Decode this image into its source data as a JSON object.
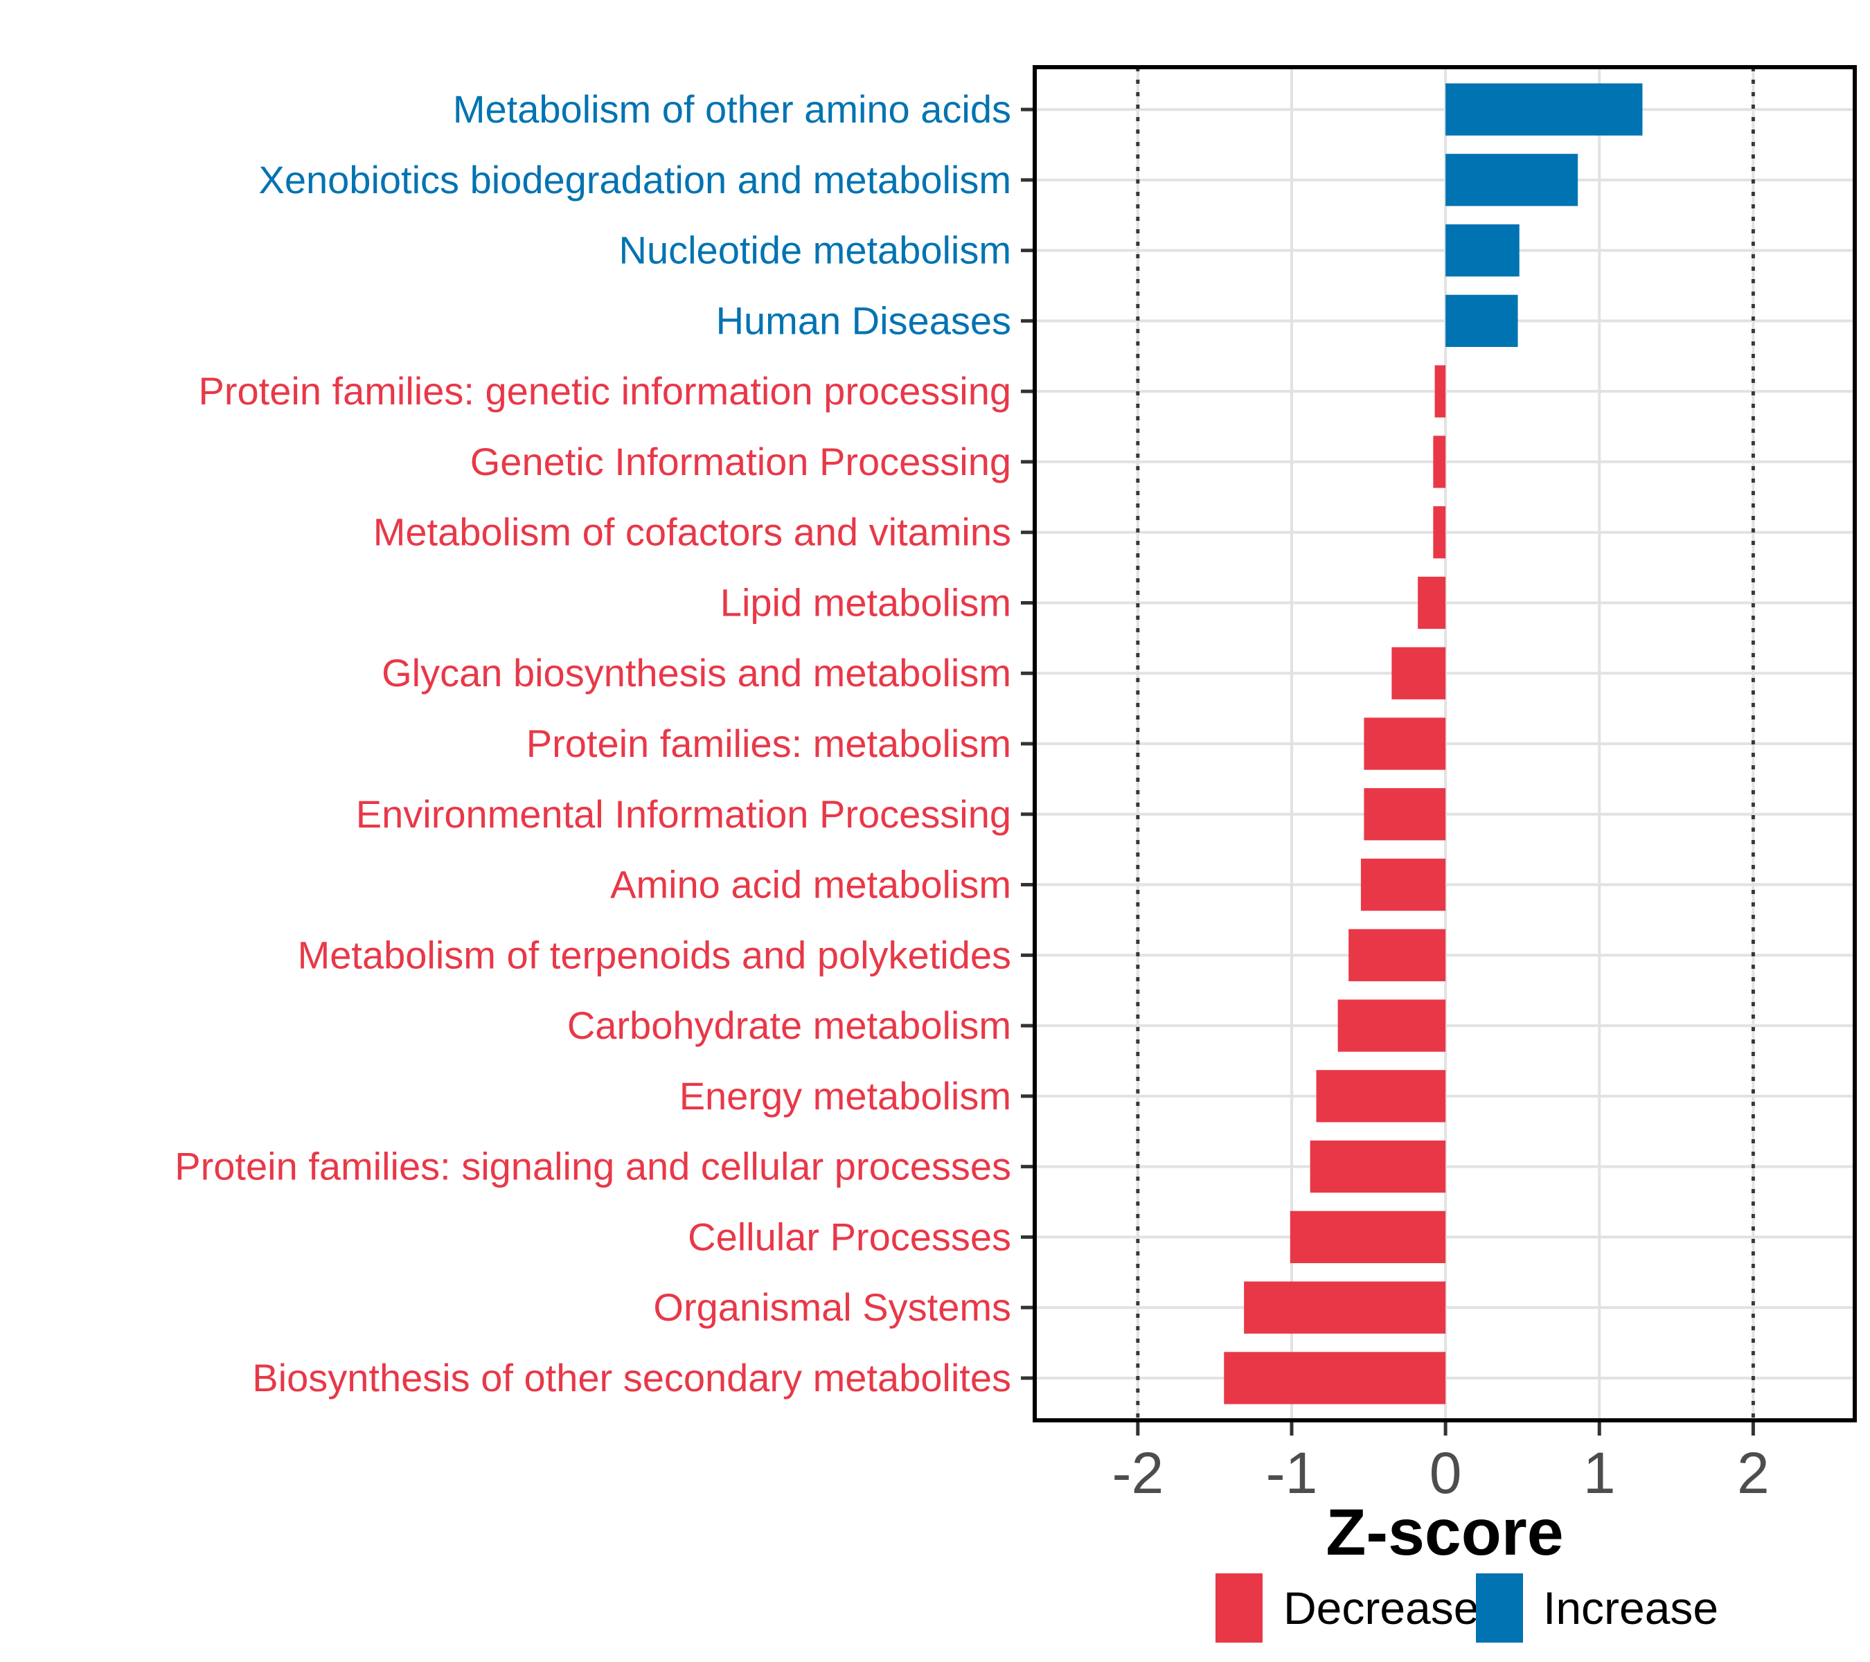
{
  "figure": {
    "background": "#ffffff"
  },
  "chart_data": {
    "type": "bar",
    "orientation": "horizontal",
    "title": "",
    "xlabel": "Z-score",
    "ylabel": "",
    "xlim": [
      -2.67,
      2.66
    ],
    "x_ticks": [
      -2,
      -1,
      0,
      1,
      2
    ],
    "grid": true,
    "gridline_color": "#e2e2e2",
    "panel_border_color": "#000000",
    "tick_color": "#333333",
    "tick_label_color": "#4d4d4d",
    "reference_lines": {
      "values": [
        -2,
        2
      ],
      "style": "dotted",
      "color": "#383838"
    },
    "colors": {
      "decrease": "#e83848",
      "increase": "#0073b2"
    },
    "categories": [
      "Metabolism of other amino acids",
      "Xenobiotics biodegradation and metabolism",
      "Nucleotide metabolism",
      "Human Diseases",
      "Protein families: genetic information processing",
      "Genetic Information Processing",
      "Metabolism of cofactors and vitamins",
      "Lipid metabolism",
      "Glycan biosynthesis and metabolism",
      "Protein families: metabolism",
      "Environmental Information Processing",
      "Amino acid metabolism",
      "Metabolism of terpenoids and polyketides",
      "Carbohydrate metabolism",
      "Energy metabolism",
      "Protein families: signaling and cellular processes",
      "Cellular Processes",
      "Organismal Systems",
      "Biosynthesis of other secondary metabolites"
    ],
    "values": [
      1.28,
      0.86,
      0.48,
      0.47,
      -0.07,
      -0.08,
      -0.08,
      -0.18,
      -0.35,
      -0.53,
      -0.53,
      -0.55,
      -0.63,
      -0.7,
      -0.84,
      -0.88,
      -1.01,
      -1.31,
      -1.44
    ],
    "directions": [
      "Increase",
      "Increase",
      "Increase",
      "Increase",
      "Decrease",
      "Decrease",
      "Decrease",
      "Decrease",
      "Decrease",
      "Decrease",
      "Decrease",
      "Decrease",
      "Decrease",
      "Decrease",
      "Decrease",
      "Decrease",
      "Decrease",
      "Decrease",
      "Decrease"
    ],
    "legend": {
      "position": "bottom",
      "entries": [
        {
          "label": "Decrease",
          "color": "#e83848"
        },
        {
          "label": "Increase",
          "color": "#0073b2"
        }
      ]
    }
  }
}
